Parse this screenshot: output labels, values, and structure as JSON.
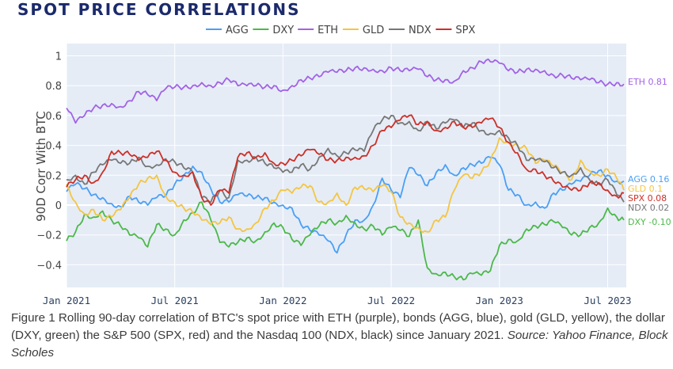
{
  "header": {
    "title": "SPOT PRICE CORRELATIONS"
  },
  "caption": {
    "main": "Figure 1 Rolling 90-day correlation of BTC's spot price with ETH (purple), bonds (AGG, blue), gold (GLD, yellow), the dollar (DXY, green) the S&P 500 (SPX, red) and the Nasdaq 100 (NDX, black) since January 2021.",
    "source": "Source: Yahoo Finance, Block Scholes"
  },
  "chart_data": {
    "type": "line",
    "title": "SPOT PRICE CORRELATIONS",
    "xlabel": "",
    "ylabel": "90D Corr With BTC",
    "ylim": [
      -0.55,
      1.05
    ],
    "xlim": [
      "2021-01-01",
      "2023-07-27"
    ],
    "yticks": [
      -0.4,
      -0.2,
      0,
      0.2,
      0.4,
      0.6,
      0.8,
      1
    ],
    "ytick_labels": [
      "−0.4",
      "−0.2",
      "0",
      "0.2",
      "0.4",
      "0.6",
      "0.8",
      "1"
    ],
    "xticks": [
      "2021-01-01",
      "2021-07-01",
      "2022-01-01",
      "2022-07-01",
      "2023-01-01",
      "2023-07-01"
    ],
    "xtick_labels": [
      "Jan 2021",
      "Jul 2021",
      "Jan 2022",
      "Jul 2022",
      "Jan 2023",
      "Jul 2023"
    ],
    "grid": true,
    "legend": {
      "placement": "top-center",
      "orientation": "horizontal"
    },
    "x_months": [
      0,
      0.5,
      1,
      1.5,
      2,
      2.5,
      3,
      3.5,
      4,
      4.5,
      5,
      5.5,
      6,
      6.5,
      7,
      7.5,
      8,
      8.5,
      9,
      9.5,
      10,
      10.5,
      11,
      11.5,
      12,
      12.5,
      13,
      13.5,
      14,
      14.5,
      15,
      15.5,
      16,
      16.5,
      17,
      17.5,
      18,
      18.5,
      19,
      19.5,
      20,
      20.5,
      21,
      21.5,
      22,
      22.5,
      23,
      23.5,
      24,
      24.5,
      25,
      25.5,
      26,
      26.5,
      27,
      27.5,
      28,
      28.5,
      29,
      29.5,
      30,
      30.5,
      30.9
    ],
    "x_unit": "months since Jan 2021",
    "series": [
      {
        "name": "AGG",
        "color": "#4a9ff5",
        "end_label": "AGG 0.16",
        "values": [
          0.09,
          0.14,
          0.11,
          0.07,
          0.05,
          0.01,
          -0.01,
          0.06,
          0.02,
          0.0,
          0.05,
          0.06,
          0.14,
          0.2,
          0.26,
          0.22,
          0.11,
          0.02,
          0.02,
          0.07,
          0.06,
          0.05,
          0.05,
          0.02,
          0.0,
          -0.02,
          -0.13,
          -0.17,
          -0.2,
          -0.24,
          -0.32,
          -0.2,
          -0.1,
          -0.1,
          0.0,
          0.18,
          0.1,
          0.05,
          0.25,
          0.2,
          0.13,
          0.22,
          0.27,
          0.2,
          0.25,
          0.27,
          0.28,
          0.32,
          0.27,
          0.1,
          0.07,
          0.0,
          0.02,
          -0.02,
          0.08,
          0.1,
          0.14,
          0.16,
          0.2,
          0.23,
          0.2,
          0.16,
          0.16
        ]
      },
      {
        "name": "DXY",
        "color": "#4cb849",
        "end_label": "DXY -0.10",
        "values": [
          -0.24,
          -0.18,
          -0.06,
          -0.08,
          -0.04,
          -0.1,
          -0.14,
          -0.2,
          -0.22,
          -0.28,
          -0.13,
          -0.16,
          -0.2,
          -0.1,
          -0.05,
          0.02,
          -0.1,
          -0.25,
          -0.28,
          -0.25,
          -0.22,
          -0.24,
          -0.18,
          -0.12,
          -0.15,
          -0.23,
          -0.27,
          -0.2,
          -0.14,
          -0.1,
          -0.12,
          -0.07,
          -0.12,
          -0.16,
          -0.14,
          -0.2,
          -0.15,
          -0.17,
          -0.21,
          -0.1,
          -0.42,
          -0.46,
          -0.45,
          -0.48,
          -0.5,
          -0.46,
          -0.47,
          -0.44,
          -0.27,
          -0.23,
          -0.24,
          -0.16,
          -0.14,
          -0.13,
          -0.11,
          -0.15,
          -0.2,
          -0.2,
          -0.15,
          -0.12,
          -0.02,
          -0.08,
          -0.1
        ]
      },
      {
        "name": "ETH",
        "color": "#a262e6",
        "end_label": "ETH 0.81",
        "values": [
          0.65,
          0.55,
          0.6,
          0.65,
          0.67,
          0.68,
          0.66,
          0.7,
          0.76,
          0.74,
          0.7,
          0.78,
          0.79,
          0.79,
          0.8,
          0.82,
          0.8,
          0.82,
          0.84,
          0.8,
          0.8,
          0.8,
          0.79,
          0.8,
          0.77,
          0.8,
          0.84,
          0.85,
          0.86,
          0.89,
          0.89,
          0.9,
          0.92,
          0.92,
          0.91,
          0.9,
          0.92,
          0.9,
          0.9,
          0.91,
          0.86,
          0.84,
          0.84,
          0.83,
          0.9,
          0.92,
          0.96,
          0.96,
          0.95,
          0.9,
          0.89,
          0.91,
          0.91,
          0.9,
          0.87,
          0.87,
          0.85,
          0.84,
          0.84,
          0.82,
          0.81,
          0.82,
          0.81
        ]
      },
      {
        "name": "GLD",
        "color": "#f4c542",
        "end_label": "GLD 0.1",
        "values": [
          0.14,
          0.02,
          -0.06,
          -0.03,
          -0.1,
          -0.08,
          -0.03,
          0.05,
          0.14,
          0.18,
          0.2,
          0.06,
          0.02,
          -0.02,
          -0.05,
          -0.1,
          -0.13,
          -0.12,
          -0.08,
          -0.16,
          -0.16,
          -0.12,
          -0.02,
          0.03,
          0.1,
          0.08,
          0.12,
          0.13,
          0.02,
          0.02,
          0.08,
          0.0,
          0.12,
          0.11,
          0.09,
          0.13,
          0.09,
          -0.08,
          -0.12,
          -0.15,
          -0.18,
          -0.1,
          -0.08,
          0.1,
          0.2,
          0.18,
          0.22,
          0.3,
          0.45,
          0.42,
          0.4,
          0.38,
          0.28,
          0.3,
          0.26,
          0.22,
          0.17,
          0.3,
          0.23,
          0.2,
          0.24,
          0.18,
          0.1
        ]
      },
      {
        "name": "NDX",
        "color": "#777777",
        "end_label": "NDX 0.02",
        "values": [
          0.17,
          0.2,
          0.14,
          0.22,
          0.27,
          0.3,
          0.28,
          0.28,
          0.32,
          0.26,
          0.27,
          0.31,
          0.29,
          0.25,
          0.22,
          0.05,
          0.02,
          0.1,
          0.05,
          0.3,
          0.3,
          0.32,
          0.28,
          0.25,
          0.22,
          0.22,
          0.27,
          0.24,
          0.32,
          0.38,
          0.33,
          0.35,
          0.37,
          0.36,
          0.5,
          0.57,
          0.6,
          0.55,
          0.56,
          0.5,
          0.56,
          0.51,
          0.55,
          0.57,
          0.52,
          0.55,
          0.5,
          0.48,
          0.5,
          0.45,
          0.4,
          0.3,
          0.3,
          0.29,
          0.25,
          0.22,
          0.2,
          0.25,
          0.17,
          0.14,
          0.17,
          0.07,
          0.02
        ]
      },
      {
        "name": "SPX",
        "color": "#cc3028",
        "end_label": "SPX 0.08",
        "values": [
          0.12,
          0.17,
          0.2,
          0.15,
          0.22,
          0.36,
          0.35,
          0.34,
          0.3,
          0.32,
          0.36,
          0.3,
          0.22,
          0.2,
          0.22,
          0.05,
          0.0,
          0.1,
          0.08,
          0.32,
          0.35,
          0.32,
          0.35,
          0.28,
          0.28,
          0.3,
          0.33,
          0.37,
          0.34,
          0.3,
          0.3,
          0.32,
          0.32,
          0.33,
          0.4,
          0.5,
          0.52,
          0.57,
          0.6,
          0.54,
          0.56,
          0.5,
          0.52,
          0.56,
          0.52,
          0.52,
          0.55,
          0.58,
          0.52,
          0.42,
          0.35,
          0.24,
          0.24,
          0.2,
          0.16,
          0.12,
          0.1,
          0.1,
          0.15,
          0.15,
          0.1,
          0.06,
          0.08
        ]
      }
    ]
  }
}
